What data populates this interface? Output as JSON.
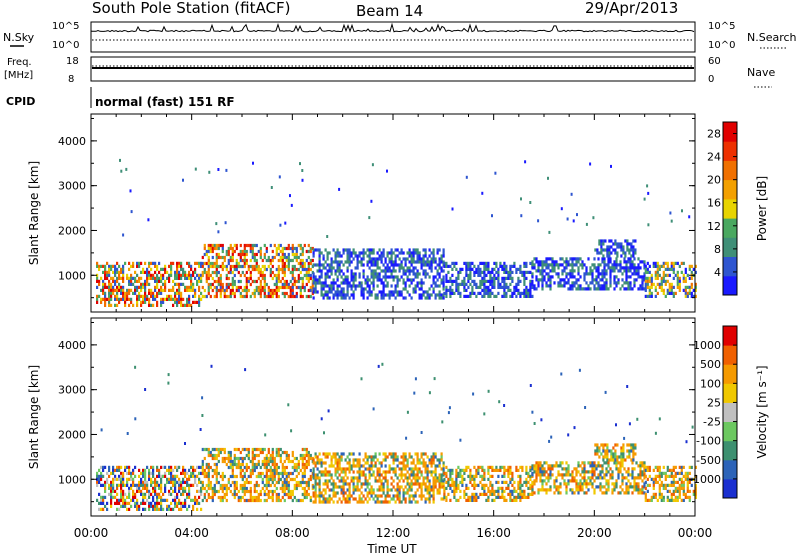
{
  "header": {
    "station": "South Pole Station (fitACF)",
    "beam": "Beam 14",
    "date": "29/Apr/2013"
  },
  "params": {
    "nsky_label": "N.Sky",
    "nsearch_label": "N.Search",
    "freq_label_1": "Freq.",
    "freq_label_2": "[MHz]",
    "nave_label": "Nave",
    "cpid_label": "CPID",
    "cpid_value": "normal (fast) 151 RF",
    "noise_ticks_left": [
      "10^5",
      "10^0"
    ],
    "noise_ticks_right": [
      "10^5",
      "10^0"
    ],
    "freq_ticks": [
      "18",
      "8"
    ],
    "nave_ticks": [
      "60",
      "0"
    ]
  },
  "chart_data": [
    {
      "type": "heatmap",
      "name": "power",
      "ylabel": "Slant Range [km]",
      "xlabel": "Time UT",
      "x_ticks": [
        "00:00",
        "04:00",
        "08:00",
        "12:00",
        "16:00",
        "20:00",
        "00:00"
      ],
      "y_ticks": [
        "1000",
        "2000",
        "3000",
        "4000"
      ],
      "xlim_hours": [
        0,
        24
      ],
      "ylim_km": [
        180,
        4600
      ],
      "colorbar": {
        "label": "Power [dB]",
        "ticks": [
          "4",
          "8",
          "12",
          "16",
          "20",
          "24",
          "28"
        ],
        "colors": [
          "#1a1aff",
          "#2e55d0",
          "#3f8f77",
          "#4aa860",
          "#e8d400",
          "#f3a000",
          "#f07000",
          "#ee3000",
          "#e00000"
        ]
      },
      "echo_regions": [
        {
          "t0": 0.2,
          "t1": 4.4,
          "r0": 300,
          "r1": 1300,
          "level": "high"
        },
        {
          "t0": 4.4,
          "t1": 8.8,
          "r0": 500,
          "r1": 1700,
          "level": "high"
        },
        {
          "t0": 8.8,
          "t1": 14.0,
          "r0": 500,
          "r1": 1600,
          "level": "low"
        },
        {
          "t0": 14.0,
          "t1": 17.5,
          "r0": 500,
          "r1": 1300,
          "level": "low"
        },
        {
          "t0": 17.5,
          "t1": 22.0,
          "r0": 700,
          "r1": 1400,
          "level": "low"
        },
        {
          "t0": 20.0,
          "t1": 21.6,
          "r0": 1450,
          "r1": 1800,
          "level": "low"
        },
        {
          "t0": 22.0,
          "t1": 24.0,
          "r0": 500,
          "r1": 1300,
          "level": "mid"
        }
      ]
    },
    {
      "type": "heatmap",
      "name": "velocity",
      "ylabel": "Slant Range [km]",
      "xlabel": "Time UT",
      "x_ticks": [
        "00:00",
        "04:00",
        "08:00",
        "12:00",
        "16:00",
        "20:00",
        "00:00"
      ],
      "y_ticks": [
        "1000",
        "2000",
        "3000",
        "4000"
      ],
      "xlim_hours": [
        0,
        24
      ],
      "ylim_km": [
        180,
        4600
      ],
      "colorbar": {
        "label": "Velocity [m s⁻¹]",
        "ticks": [
          "1000",
          "500",
          "100",
          "25",
          "-25",
          "-100",
          "-500",
          "-1000"
        ],
        "colors": [
          "#1a2fd0",
          "#2c63b8",
          "#3d9070",
          "#6cc860",
          "#c0c0c0",
          "#f0c800",
          "#f59a00",
          "#f06000",
          "#e00000"
        ]
      },
      "echo_regions": [
        {
          "t0": 0.2,
          "t1": 4.4,
          "r0": 300,
          "r1": 1300,
          "level": "mix"
        },
        {
          "t0": 4.4,
          "t1": 8.8,
          "r0": 500,
          "r1": 1700,
          "level": "neg"
        },
        {
          "t0": 8.8,
          "t1": 14.0,
          "r0": 500,
          "r1": 1600,
          "level": "neg"
        },
        {
          "t0": 14.0,
          "t1": 17.5,
          "r0": 500,
          "r1": 1300,
          "level": "neg"
        },
        {
          "t0": 17.5,
          "t1": 22.0,
          "r0": 700,
          "r1": 1400,
          "level": "neg"
        },
        {
          "t0": 20.0,
          "t1": 21.6,
          "r0": 1450,
          "r1": 1800,
          "level": "neg"
        },
        {
          "t0": 22.0,
          "t1": 24.0,
          "r0": 500,
          "r1": 1300,
          "level": "neg"
        }
      ]
    }
  ]
}
